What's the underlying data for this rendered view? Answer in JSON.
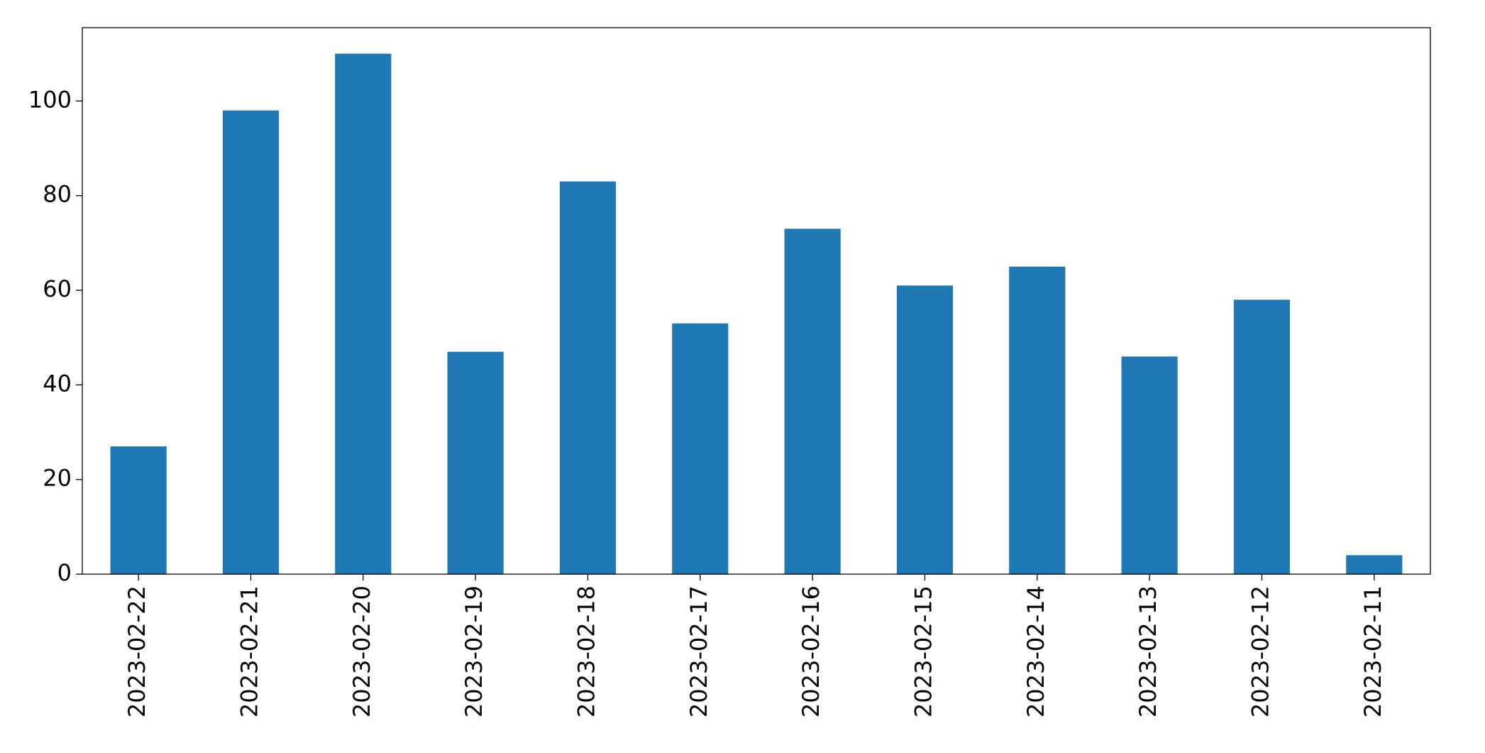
{
  "chart_data": {
    "type": "bar",
    "categories": [
      "2023-02-22",
      "2023-02-21",
      "2023-02-20",
      "2023-02-19",
      "2023-02-18",
      "2023-02-17",
      "2023-02-16",
      "2023-02-15",
      "2023-02-14",
      "2023-02-13",
      "2023-02-12",
      "2023-02-11"
    ],
    "values": [
      27,
      98,
      110,
      47,
      83,
      53,
      73,
      61,
      65,
      46,
      58,
      4
    ],
    "color": "#1f77b4",
    "ylim": [
      0,
      115.5
    ],
    "yticks": [
      0,
      20,
      40,
      60,
      80,
      100
    ],
    "grid": false
  }
}
